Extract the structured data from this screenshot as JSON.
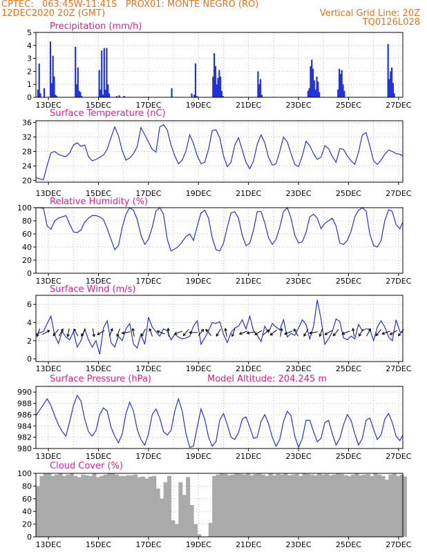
{
  "header": {
    "line1_left": "CPTEC:   063:45W-11:41S   PROX01: MONTE NEGRO (RO)",
    "line2_left": "12DEC2020 20Z (GMT)",
    "line2_right": "Vertical Grid Line: 20Z",
    "line3_right": "TQ0126L028"
  },
  "colors": {
    "header": "#e8731c",
    "title": "#e0208c",
    "series": "#2233dd",
    "arrow": "#000000",
    "cloud": "#aaaaaa",
    "grid": "#bbbbbb"
  },
  "chart_data": [
    {
      "type": "bar",
      "title": "Precipitation (mm/h)",
      "x_ticks": [
        "13DEC",
        "15DEC",
        "17DEC",
        "19DEC",
        "21DEC",
        "23DEC",
        "25DEC",
        "27DEC"
      ],
      "x_days": [
        0.0,
        14.67
      ],
      "ylim": [
        0,
        5
      ],
      "y_ticks": [
        0,
        1,
        2,
        3,
        4,
        5
      ],
      "grid": true,
      "x": [
        0.05,
        0.1,
        0.15,
        0.3,
        0.55,
        0.6,
        0.65,
        0.7,
        0.75,
        0.8,
        1.55,
        1.6,
        1.65,
        1.7,
        1.75,
        1.8,
        2.5,
        2.55,
        2.6,
        2.65,
        2.7,
        2.75,
        2.8,
        2.85,
        2.9,
        3.2,
        3.3,
        3.5,
        5.4,
        6.2,
        6.3,
        6.35,
        6.4,
        7.05,
        7.1,
        7.15,
        7.2,
        7.25,
        7.3,
        7.35,
        7.4,
        7.45,
        8.85,
        8.9,
        8.95,
        9.0,
        10.85,
        10.9,
        10.95,
        11.0,
        11.05,
        11.1,
        11.15,
        11.2,
        11.25,
        11.3,
        12.05,
        12.1,
        12.15,
        12.2,
        12.25,
        12.3,
        14.05,
        14.1,
        14.15,
        14.2,
        14.25,
        14.3
      ],
      "values": [
        0.6,
        2.6,
        0.3,
        0.7,
        4.3,
        1.1,
        3.2,
        1.6,
        0.2,
        0.1,
        3.9,
        1.0,
        2.3,
        0.5,
        0.4,
        0.1,
        2.1,
        0.6,
        3.6,
        0.2,
        3.8,
        0.6,
        3.8,
        1.0,
        0.3,
        0.1,
        0.15,
        0.1,
        0.7,
        0.3,
        0.2,
        2.6,
        0.1,
        1.6,
        3.4,
        2.4,
        1.0,
        1.5,
        2.1,
        1.6,
        0.5,
        0.1,
        2.0,
        1.0,
        1.4,
        0.2,
        0.5,
        0.7,
        2.4,
        2.9,
        2.2,
        1.3,
        0.6,
        1.6,
        1.2,
        0.4,
        0.6,
        2.2,
        1.8,
        2.1,
        1.0,
        0.5,
        4.1,
        1.4,
        2.0,
        2.3,
        1.1,
        0.3
      ]
    },
    {
      "type": "line",
      "title": "Surface Temperature (nC)",
      "x_ticks": [
        "13DEC",
        "15DEC",
        "17DEC",
        "19DEC",
        "21DEC",
        "23DEC",
        "25DEC",
        "27DEC"
      ],
      "ylim": [
        19.5,
        36.5
      ],
      "y_ticks": [
        20,
        24,
        28,
        32,
        36
      ],
      "grid": true,
      "x": [
        0.0,
        0.15,
        0.3,
        0.45,
        0.6,
        0.75,
        0.9,
        1.05,
        1.2,
        1.35,
        1.5,
        1.65,
        1.8,
        1.95,
        2.1,
        2.25,
        2.4,
        2.55,
        2.7,
        2.85,
        3.0,
        3.15,
        3.3,
        3.45,
        3.6,
        3.75,
        3.9,
        4.05,
        4.2,
        4.35,
        4.5,
        4.65,
        4.8,
        4.95,
        5.1,
        5.25,
        5.4,
        5.55,
        5.7,
        5.85,
        6.0,
        6.15,
        6.3,
        6.45,
        6.6,
        6.75,
        6.9,
        7.05,
        7.2,
        7.35,
        7.5,
        7.65,
        7.8,
        7.95,
        8.1,
        8.25,
        8.4,
        8.55,
        8.7,
        8.85,
        9.0,
        9.15,
        9.3,
        9.45,
        9.6,
        9.75,
        9.9,
        10.05,
        10.2,
        10.35,
        10.5,
        10.65,
        10.8,
        10.95,
        11.1,
        11.25,
        11.4,
        11.55,
        11.7,
        11.85,
        12.0,
        12.15,
        12.3,
        12.45,
        12.6,
        12.75,
        12.9,
        13.05,
        13.2,
        13.35,
        13.5,
        13.65,
        13.8,
        13.95,
        14.1,
        14.25,
        14.4,
        14.55,
        14.67
      ],
      "values": [
        20.8,
        20.4,
        20.2,
        24.2,
        27.6,
        28.0,
        27.2,
        26.8,
        26.6,
        27.6,
        29.8,
        30.4,
        29.4,
        29.8,
        26.6,
        25.4,
        25.8,
        26.4,
        27.0,
        28.6,
        31.8,
        34.8,
        32.4,
        28.2,
        25.6,
        26.2,
        27.4,
        29.4,
        34.6,
        32.6,
        30.6,
        28.6,
        27.8,
        34.8,
        35.4,
        34.0,
        29.8,
        26.8,
        24.6,
        25.6,
        28.2,
        32.6,
        30.2,
        26.8,
        24.6,
        25.0,
        28.6,
        33.8,
        34.0,
        31.8,
        26.8,
        23.8,
        25.0,
        29.8,
        31.8,
        28.4,
        25.0,
        23.2,
        25.4,
        30.0,
        32.6,
        30.4,
        26.4,
        24.2,
        24.6,
        28.0,
        32.0,
        30.6,
        27.4,
        24.4,
        23.8,
        26.8,
        30.8,
        29.6,
        27.4,
        25.8,
        26.4,
        29.6,
        28.8,
        26.6,
        25.0,
        28.8,
        28.6,
        26.8,
        25.4,
        24.4,
        27.8,
        32.6,
        33.2,
        29.6,
        25.4,
        24.4,
        25.6,
        27.2,
        28.4,
        28.0,
        27.4,
        27.2,
        26.8
      ]
    },
    {
      "type": "line",
      "title": "Relative Humidity (%)",
      "x_ticks": [
        "13DEC",
        "15DEC",
        "17DEC",
        "19DEC",
        "21DEC",
        "23DEC",
        "25DEC",
        "27DEC"
      ],
      "ylim": [
        0,
        100
      ],
      "y_ticks": [
        0,
        20,
        40,
        60,
        80,
        100
      ],
      "grid": true,
      "x": [
        0.0,
        0.15,
        0.3,
        0.45,
        0.6,
        0.75,
        0.9,
        1.05,
        1.2,
        1.35,
        1.5,
        1.65,
        1.8,
        1.95,
        2.1,
        2.25,
        2.4,
        2.55,
        2.7,
        2.85,
        3.0,
        3.15,
        3.3,
        3.45,
        3.6,
        3.75,
        3.9,
        4.05,
        4.2,
        4.35,
        4.5,
        4.65,
        4.8,
        4.95,
        5.1,
        5.25,
        5.4,
        5.55,
        5.7,
        5.85,
        6.0,
        6.15,
        6.3,
        6.45,
        6.6,
        6.75,
        6.9,
        7.05,
        7.2,
        7.35,
        7.5,
        7.65,
        7.8,
        7.95,
        8.1,
        8.25,
        8.4,
        8.55,
        8.7,
        8.85,
        9.0,
        9.15,
        9.3,
        9.45,
        9.6,
        9.75,
        9.9,
        10.05,
        10.2,
        10.35,
        10.5,
        10.65,
        10.8,
        10.95,
        11.1,
        11.25,
        11.4,
        11.55,
        11.7,
        11.85,
        12.0,
        12.15,
        12.3,
        12.45,
        12.6,
        12.75,
        12.9,
        13.05,
        13.2,
        13.35,
        13.5,
        13.65,
        13.8,
        13.95,
        14.1,
        14.25,
        14.4,
        14.55,
        14.67
      ],
      "values": [
        100,
        100,
        99,
        72,
        67,
        80,
        84,
        86,
        88,
        75,
        63,
        62,
        66,
        78,
        84,
        88,
        88,
        86,
        82,
        68,
        52,
        36,
        42,
        70,
        90,
        100,
        96,
        82,
        58,
        44,
        52,
        70,
        95,
        100,
        90,
        52,
        34,
        37,
        41,
        48,
        56,
        60,
        50,
        72,
        92,
        96,
        84,
        54,
        36,
        34,
        46,
        70,
        92,
        94,
        84,
        58,
        42,
        46,
        66,
        94,
        94,
        77,
        54,
        44,
        52,
        70,
        94,
        100,
        84,
        58,
        46,
        48,
        62,
        86,
        90,
        84,
        68,
        76,
        80,
        84,
        72,
        46,
        44,
        50,
        64,
        86,
        96,
        100,
        95,
        60,
        42,
        40,
        50,
        80,
        97,
        94,
        74,
        68,
        78
      ]
    },
    {
      "type": "line",
      "title": "Surface Wind (m/s)",
      "x_ticks": [
        "13DEC",
        "15DEC",
        "17DEC",
        "19DEC",
        "21DEC",
        "23DEC",
        "25DEC",
        "27DEC"
      ],
      "ylim": [
        -0.3,
        7.0
      ],
      "y_ticks": [
        0,
        2,
        4,
        6
      ],
      "grid": true,
      "x": [
        0.0,
        0.15,
        0.3,
        0.45,
        0.6,
        0.75,
        0.9,
        1.05,
        1.2,
        1.35,
        1.5,
        1.65,
        1.8,
        1.95,
        2.1,
        2.25,
        2.4,
        2.55,
        2.7,
        2.85,
        3.0,
        3.15,
        3.3,
        3.45,
        3.6,
        3.75,
        3.9,
        4.05,
        4.2,
        4.35,
        4.5,
        4.65,
        4.8,
        4.95,
        5.1,
        5.25,
        5.4,
        5.55,
        5.7,
        5.85,
        6.0,
        6.15,
        6.3,
        6.45,
        6.6,
        6.75,
        6.9,
        7.05,
        7.2,
        7.35,
        7.5,
        7.65,
        7.8,
        7.95,
        8.1,
        8.25,
        8.4,
        8.55,
        8.7,
        8.85,
        9.0,
        9.15,
        9.3,
        9.45,
        9.6,
        9.75,
        9.9,
        10.05,
        10.2,
        10.35,
        10.5,
        10.65,
        10.8,
        10.95,
        11.1,
        11.25,
        11.4,
        11.55,
        11.7,
        11.85,
        12.0,
        12.15,
        12.3,
        12.45,
        12.6,
        12.75,
        12.9,
        13.05,
        13.2,
        13.35,
        13.5,
        13.65,
        13.8,
        13.95,
        14.1,
        14.25,
        14.4,
        14.55,
        14.67
      ],
      "values": [
        2.7,
        2.9,
        3.0,
        3.9,
        4.7,
        2.6,
        1.7,
        3.0,
        2.4,
        2.1,
        3.0,
        1.3,
        2.0,
        3.3,
        2.1,
        1.3,
        2.0,
        0.5,
        3.4,
        4.2,
        1.8,
        1.3,
        2.5,
        2.0,
        3.3,
        3.9,
        1.6,
        1.2,
        2.7,
        1.6,
        4.6,
        3.5,
        3.0,
        2.5,
        3.3,
        3.1,
        2.1,
        2.7,
        2.4,
        2.2,
        2.3,
        2.5,
        3.6,
        4.2,
        1.6,
        2.3,
        3.1,
        4.0,
        3.9,
        4.1,
        2.7,
        1.8,
        2.9,
        3.4,
        3.6,
        4.3,
        3.3,
        4.7,
        3.1,
        2.6,
        1.9,
        3.6,
        2.9,
        3.9,
        3.5,
        3.2,
        4.3,
        2.4,
        2.8,
        2.6,
        3.4,
        4.3,
        3.8,
        2.2,
        3.6,
        6.5,
        4.4,
        1.6,
        2.2,
        3.0,
        4.4,
        4.1,
        2.3,
        2.1,
        2.5,
        2.2,
        3.8,
        3.1,
        3.3,
        3.3,
        2.0,
        3.5,
        4.2,
        3.5,
        2.4,
        2.0,
        4.3,
        3.0,
        2.9
      ],
      "arrow_x": [
        0.1,
        0.4,
        0.8,
        1.0,
        1.3,
        1.6,
        1.9,
        2.3,
        2.6,
        3.0,
        3.3,
        3.6,
        3.9,
        4.3,
        4.6,
        5.0,
        5.3,
        5.7,
        6.0,
        6.3,
        6.6,
        6.9,
        7.3,
        7.6,
        7.9,
        8.3,
        8.6,
        8.9,
        9.2,
        9.5,
        9.8,
        10.1,
        10.4,
        10.8,
        11.1,
        11.4,
        11.7,
        12.0,
        12.4,
        12.7,
        13.0,
        13.3,
        13.7,
        14.0,
        14.3,
        14.6
      ],
      "arrow_dir_deg": [
        250,
        30,
        230,
        60,
        260,
        120,
        240,
        280,
        210,
        70,
        250,
        190,
        100,
        240,
        110,
        160,
        95,
        200,
        230,
        180,
        50,
        130,
        240,
        100,
        250,
        200,
        190,
        210,
        40,
        220,
        80,
        200,
        120,
        240,
        190,
        250,
        210,
        230,
        200,
        100,
        240,
        60,
        230,
        200,
        210,
        230
      ]
    },
    {
      "type": "line",
      "title": "Surface Pressure (hPa)",
      "annotation": "Model Altitude: 204.245 m",
      "x_ticks": [
        "13DEC",
        "15DEC",
        "17DEC",
        "19DEC",
        "21DEC",
        "23DEC",
        "25DEC",
        "27DEC"
      ],
      "ylim": [
        980,
        991
      ],
      "y_ticks": [
        980,
        982,
        984,
        986,
        988,
        990
      ],
      "grid": true,
      "x": [
        0.0,
        0.15,
        0.3,
        0.45,
        0.6,
        0.75,
        0.9,
        1.05,
        1.2,
        1.35,
        1.5,
        1.65,
        1.8,
        1.95,
        2.1,
        2.25,
        2.4,
        2.55,
        2.7,
        2.85,
        3.0,
        3.15,
        3.3,
        3.45,
        3.6,
        3.75,
        3.9,
        4.05,
        4.2,
        4.35,
        4.5,
        4.65,
        4.8,
        4.95,
        5.1,
        5.25,
        5.4,
        5.55,
        5.7,
        5.85,
        6.0,
        6.15,
        6.3,
        6.45,
        6.6,
        6.75,
        6.9,
        7.05,
        7.2,
        7.35,
        7.5,
        7.65,
        7.8,
        7.95,
        8.1,
        8.25,
        8.4,
        8.55,
        8.7,
        8.85,
        9.0,
        9.15,
        9.3,
        9.45,
        9.6,
        9.75,
        9.9,
        10.05,
        10.2,
        10.35,
        10.5,
        10.65,
        10.8,
        10.95,
        11.1,
        11.25,
        11.4,
        11.55,
        11.7,
        11.85,
        12.0,
        12.15,
        12.3,
        12.45,
        12.6,
        12.75,
        12.9,
        13.05,
        13.2,
        13.35,
        13.5,
        13.65,
        13.8,
        13.95,
        14.1,
        14.25,
        14.4,
        14.55,
        14.67
      ],
      "values": [
        985.8,
        986.8,
        987.8,
        988.8,
        987.6,
        985.8,
        984.2,
        983.0,
        982.2,
        984.8,
        987.6,
        989.4,
        988.4,
        985.2,
        983.0,
        982.2,
        983.2,
        986.0,
        987.2,
        986.6,
        983.8,
        982.2,
        981.0,
        982.6,
        986.2,
        988.2,
        986.6,
        983.4,
        981.6,
        980.6,
        982.6,
        986.0,
        987.0,
        985.4,
        983.0,
        982.4,
        983.2,
        986.6,
        988.8,
        986.6,
        982.6,
        980.2,
        980.4,
        983.8,
        987.0,
        985.2,
        982.0,
        980.4,
        981.2,
        985.0,
        986.2,
        984.2,
        982.0,
        981.6,
        982.8,
        985.2,
        985.6,
        983.8,
        981.8,
        982.0,
        984.8,
        986.0,
        984.4,
        982.0,
        980.4,
        981.6,
        984.8,
        986.6,
        985.8,
        982.2,
        980.2,
        981.8,
        985.0,
        985.0,
        983.0,
        981.2,
        981.8,
        984.6,
        985.0,
        982.6,
        980.6,
        981.8,
        984.2,
        986.0,
        985.0,
        982.6,
        980.6,
        981.8,
        985.0,
        985.4,
        983.4,
        981.6,
        982.4,
        985.2,
        986.2,
        984.6,
        982.2,
        981.4,
        982.4
      ]
    },
    {
      "type": "bar",
      "title": "Cloud Cover (%)",
      "x_ticks": [
        "13DEC",
        "15DEC",
        "17DEC",
        "19DEC",
        "21DEC",
        "23DEC",
        "25DEC",
        "27DEC"
      ],
      "ylim": [
        0,
        100
      ],
      "y_ticks": [
        0,
        20,
        40,
        60,
        80,
        100
      ],
      "grid": true,
      "x": [
        0.0,
        0.15,
        0.3,
        0.45,
        0.6,
        0.75,
        0.9,
        1.05,
        1.2,
        1.35,
        1.5,
        1.65,
        1.8,
        1.95,
        2.1,
        2.25,
        2.4,
        2.55,
        2.7,
        2.85,
        3.0,
        3.15,
        3.3,
        3.45,
        3.6,
        3.75,
        3.9,
        4.05,
        4.2,
        4.35,
        4.5,
        4.65,
        4.8,
        4.95,
        5.1,
        5.25,
        5.4,
        5.55,
        5.7,
        5.85,
        6.0,
        6.15,
        6.3,
        6.45,
        6.6,
        6.75,
        6.9,
        7.05,
        7.2,
        7.35,
        7.5,
        7.65,
        7.8,
        7.95,
        8.1,
        8.25,
        8.4,
        8.55,
        8.7,
        8.85,
        9.0,
        9.15,
        9.3,
        9.45,
        9.6,
        9.75,
        9.9,
        10.05,
        10.2,
        10.35,
        10.5,
        10.65,
        10.8,
        10.95,
        11.1,
        11.25,
        11.4,
        11.55,
        11.7,
        11.85,
        12.0,
        12.15,
        12.3,
        12.45,
        12.6,
        12.75,
        12.9,
        13.05,
        13.2,
        13.35,
        13.5,
        13.65,
        13.8,
        13.95,
        14.1,
        14.25,
        14.4,
        14.55,
        14.67
      ],
      "values": [
        80,
        96,
        100,
        100,
        96,
        98,
        100,
        96,
        98,
        100,
        96,
        94,
        98,
        97,
        96,
        100,
        94,
        96,
        98,
        100,
        100,
        98,
        96,
        96,
        97,
        97,
        98,
        94,
        95,
        92,
        95,
        96,
        76,
        60,
        86,
        96,
        26,
        20,
        86,
        66,
        94,
        50,
        20,
        4,
        0,
        0,
        22,
        96,
        98,
        100,
        99,
        97,
        98,
        100,
        99,
        98,
        100,
        97,
        99,
        100,
        98,
        96,
        100,
        97,
        99,
        98,
        100,
        97,
        98,
        99,
        96,
        100,
        99,
        98,
        97,
        100,
        98,
        99,
        97,
        98,
        100,
        99,
        97,
        96,
        98,
        100,
        97,
        98,
        99,
        96,
        100,
        98,
        96,
        90,
        98,
        100,
        96,
        98,
        95
      ]
    }
  ]
}
